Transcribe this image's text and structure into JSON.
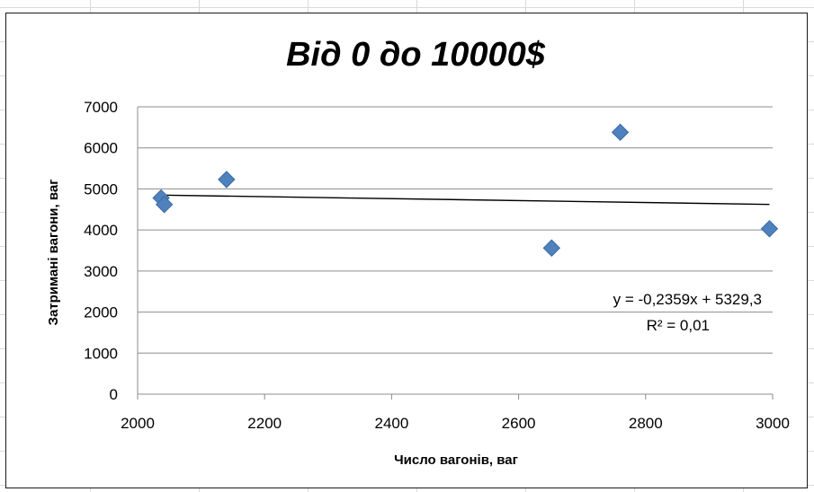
{
  "chart_data": {
    "type": "scatter",
    "title": "Від 0 до 10000$",
    "xlabel": "Число вагонів, ваг",
    "ylabel": "Затримані вагони, ваг",
    "xlim": [
      2000,
      3000
    ],
    "ylim": [
      0,
      7000
    ],
    "xticks": [
      2000,
      2200,
      2400,
      2600,
      2800,
      3000
    ],
    "yticks": [
      0,
      1000,
      2000,
      3000,
      4000,
      5000,
      6000,
      7000
    ],
    "grid": "horizontal",
    "marker_color": "#4F81BD",
    "marker": "diamond",
    "series": [
      {
        "points": [
          {
            "x": 2037,
            "y": 4780
          },
          {
            "x": 2042,
            "y": 4620
          },
          {
            "x": 2140,
            "y": 5230
          },
          {
            "x": 2652,
            "y": 3560
          },
          {
            "x": 2760,
            "y": 6380
          },
          {
            "x": 2995,
            "y": 4030
          }
        ]
      }
    ],
    "trendline": {
      "type": "linear",
      "slope": -0.2359,
      "intercept": 5329.3,
      "x_range": [
        2037,
        2995
      ],
      "color": "#000000",
      "equation_text": "y = -0,2359x + 5329,3",
      "r2_text": "R² = 0,01"
    }
  }
}
